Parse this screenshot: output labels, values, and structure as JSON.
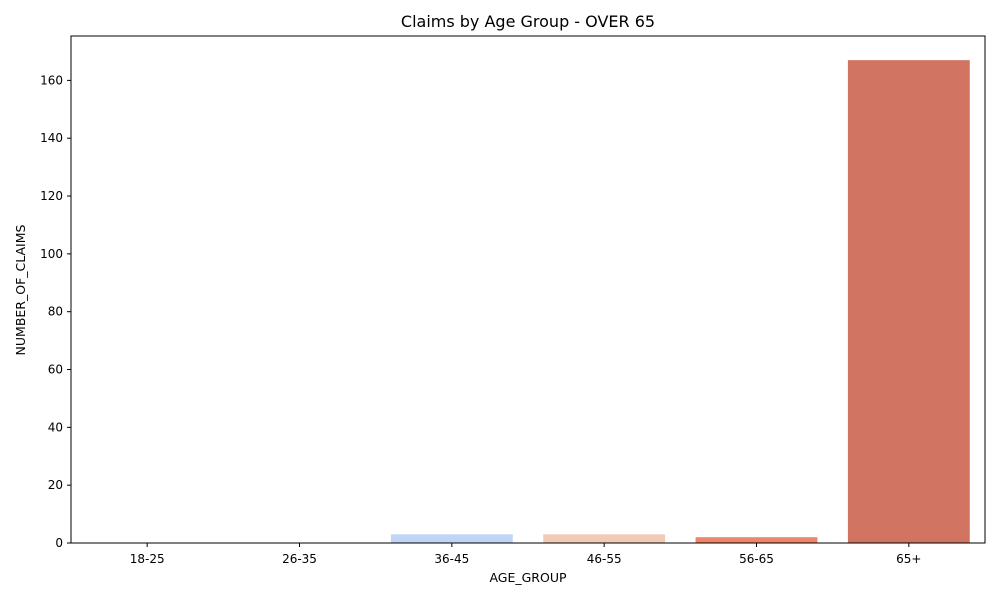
{
  "chart_data": {
    "type": "bar",
    "title": "Claims by Age Group - OVER 65",
    "xlabel": "AGE_GROUP",
    "ylabel": "NUMBER_OF_CLAIMS",
    "categories": [
      "18-25",
      "26-35",
      "36-45",
      "46-55",
      "56-65",
      "65+"
    ],
    "values": [
      0,
      0,
      3,
      3,
      2,
      167
    ],
    "colors": [
      "#3b4cc0",
      "#7b9ff9",
      "#c0d4f5",
      "#f2cbb7",
      "#ee8468",
      "#d17562"
    ],
    "ylim": [
      0,
      175.35
    ],
    "yticks": [
      0,
      20,
      40,
      60,
      80,
      100,
      120,
      140,
      160
    ],
    "grid": false,
    "legend": "none"
  }
}
